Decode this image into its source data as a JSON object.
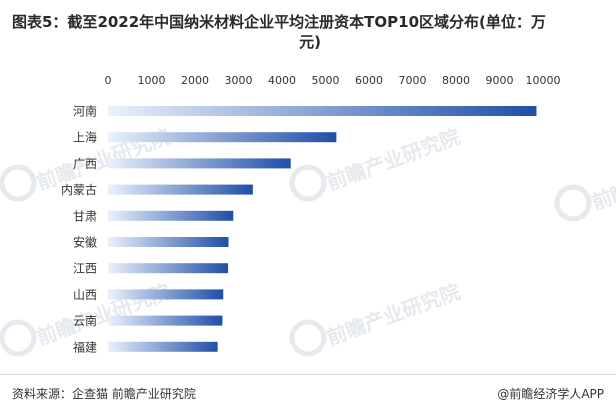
{
  "title_line1": "图表5：截至2022年中国纳米材料企业平均注册资本TOP10区域分布(单位：万",
  "title_line2": "元)",
  "source": "资料来源：企查猫 前瞻产业研究院",
  "brand": "@前瞻经济学人APP",
  "watermark": "前瞻产业研究院",
  "colors": {
    "bar_dark": "#1f4fa8",
    "bar_light": "#eaf1fb",
    "grid": "#e6e6e6",
    "text": "#333333"
  },
  "chart_data": {
    "type": "bar",
    "orientation": "horizontal",
    "title": "图表5：截至2022年中国纳米材料企业平均注册资本TOP10区域分布(单位：万元)",
    "categories": [
      "河南",
      "上海",
      "广西",
      "内蒙古",
      "甘肃",
      "安徽",
      "江西",
      "山西",
      "云南",
      "福建"
    ],
    "values": [
      9850,
      5250,
      4200,
      3330,
      2880,
      2770,
      2760,
      2650,
      2630,
      2520
    ],
    "xlim": [
      0,
      10000
    ],
    "xticks": [
      0,
      1000,
      2000,
      3000,
      4000,
      5000,
      6000,
      7000,
      8000,
      9000,
      10000
    ],
    "axis_position": "top",
    "xlabel": "",
    "ylabel": ""
  }
}
